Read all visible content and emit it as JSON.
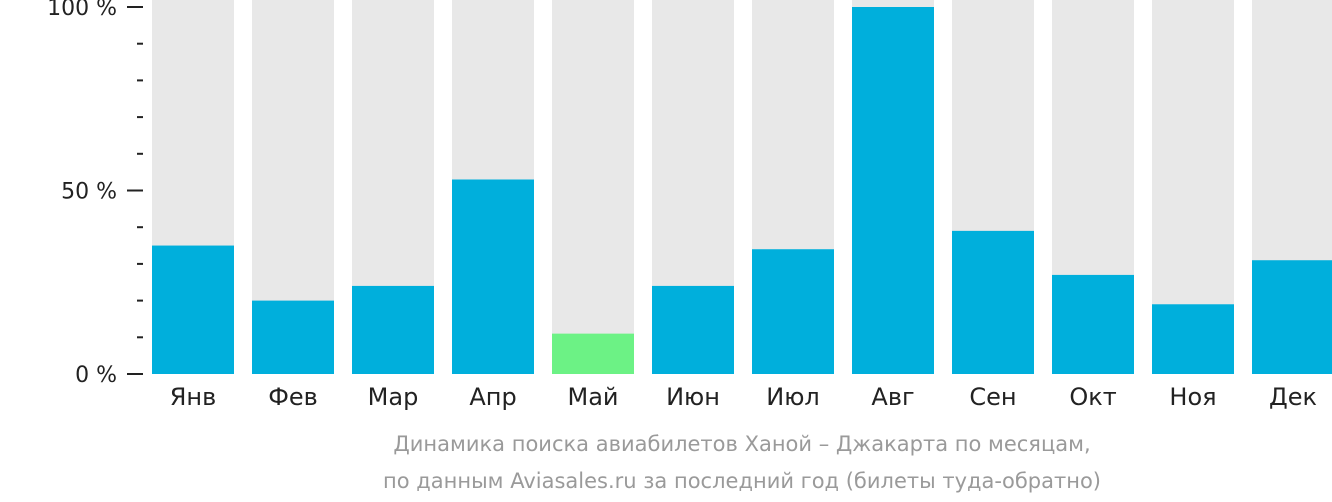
{
  "chart_data": {
    "type": "bar",
    "categories": [
      "Янв",
      "Фев",
      "Мар",
      "Апр",
      "Май",
      "Июн",
      "Июл",
      "Авг",
      "Сен",
      "Окт",
      "Ноя",
      "Дек"
    ],
    "values": [
      35,
      20,
      24,
      53,
      11,
      24,
      34,
      100,
      39,
      27,
      19,
      31
    ],
    "max_value": 100,
    "ylim": [
      0,
      100
    ],
    "yticks": [
      {
        "value": 0,
        "label": "0 %"
      },
      {
        "value": 50,
        "label": "50 %"
      },
      {
        "value": 100,
        "label": "100 %"
      }
    ],
    "minor_tick_step": 10,
    "highlight_index": 4,
    "title": "Динамика поиска авиабилетов Ханой – Джакарта по месяцам,",
    "subtitle": "по данным Aviasales.ru за последний год (билеты туда-обратно)",
    "colors": {
      "bar": "#00afdc",
      "highlight": "#6cf285",
      "background_bar": "#e8e8e8",
      "axis": "#222222",
      "caption": "#9a9a9a"
    },
    "grid": false,
    "legend": "none"
  }
}
